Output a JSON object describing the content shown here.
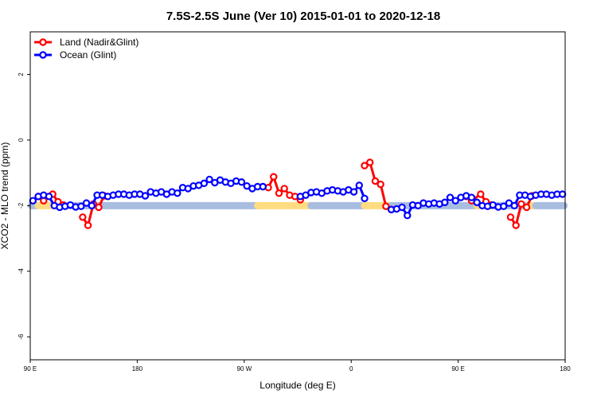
{
  "chart_data": {
    "type": "line",
    "title": "7.5S-2.5S June (Ver 10)   2015-01-01 to 2020-12-18",
    "xlabel": "Longitude (deg E)",
    "ylabel": "XCO2 - MLO trend (ppm)",
    "xlim": [
      0,
      100
    ],
    "ylim": [
      -6.7,
      3.3
    ],
    "x_ticks": [
      {
        "x": 0,
        "label": "90 E"
      },
      {
        "x": 20,
        "label": "180"
      },
      {
        "x": 40,
        "label": "90 W"
      },
      {
        "x": 60,
        "label": "0"
      },
      {
        "x": 80,
        "label": "90 E"
      },
      {
        "x": 100,
        "label": "180"
      }
    ],
    "y_ticks": [
      {
        "y": 2,
        "label": "2"
      },
      {
        "y": 0,
        "label": "0"
      },
      {
        "y": -2,
        "label": "-2"
      },
      {
        "y": -4,
        "label": "-4"
      },
      {
        "y": -6,
        "label": "-6"
      }
    ],
    "legend": {
      "position": "top-left"
    },
    "series": [
      {
        "name": "Land (Nadir&Glint)",
        "color": "#ff0000",
        "segments": [
          [
            [
              1.5,
              -1.72
            ],
            [
              2.5,
              -1.85
            ],
            [
              4.2,
              -1.65
            ],
            [
              5.2,
              -1.88
            ],
            [
              6.2,
              -1.98
            ]
          ],
          [
            [
              9.8,
              -2.35
            ],
            [
              10.8,
              -2.6
            ],
            [
              11.8,
              -1.95
            ],
            [
              12.8,
              -2.05
            ],
            [
              13.8,
              -1.7
            ]
          ],
          [
            [
              43.5,
              -1.42
            ],
            [
              44.5,
              -1.45
            ],
            [
              45.5,
              -1.12
            ],
            [
              46.5,
              -1.62
            ],
            [
              47.5,
              -1.48
            ],
            [
              48.5,
              -1.68
            ],
            [
              49.5,
              -1.72
            ],
            [
              50.5,
              -1.82
            ]
          ],
          [
            [
              62.5,
              -0.78
            ],
            [
              63.5,
              -0.68
            ],
            [
              64.5,
              -1.25
            ],
            [
              65.5,
              -1.35
            ],
            [
              66.5,
              -2.02
            ],
            [
              67.5,
              -2.12
            ]
          ],
          [
            [
              81.5,
              -1.72
            ],
            [
              82.5,
              -1.85
            ],
            [
              84.2,
              -1.65
            ],
            [
              85.2,
              -1.88
            ],
            [
              86.2,
              -1.98
            ]
          ],
          [
            [
              89.8,
              -2.35
            ],
            [
              90.8,
              -2.6
            ],
            [
              91.8,
              -1.95
            ],
            [
              92.8,
              -2.05
            ],
            [
              93.8,
              -1.7
            ]
          ]
        ]
      },
      {
        "name": "Ocean (Glint)",
        "color": "#0000ff",
        "segments": [
          [
            [
              0.5,
              -1.85
            ],
            [
              1.5,
              -1.72
            ],
            [
              2.5,
              -1.68
            ],
            [
              3.5,
              -1.72
            ],
            [
              4.5,
              -2.0
            ],
            [
              5.5,
              -2.05
            ],
            [
              6.5,
              -2.02
            ],
            [
              7.5,
              -1.98
            ],
            [
              8.5,
              -2.04
            ],
            [
              9.5,
              -2.02
            ],
            [
              10.5,
              -1.92
            ],
            [
              11.5,
              -2.0
            ],
            [
              12.5,
              -1.68
            ],
            [
              13.5,
              -1.68
            ],
            [
              14.5,
              -1.72
            ],
            [
              15.5,
              -1.68
            ],
            [
              16.5,
              -1.65
            ],
            [
              17.5,
              -1.65
            ],
            [
              18.5,
              -1.68
            ],
            [
              19.5,
              -1.65
            ],
            [
              20.5,
              -1.65
            ],
            [
              21.5,
              -1.7
            ],
            [
              22.5,
              -1.58
            ],
            [
              23.5,
              -1.62
            ],
            [
              24.5,
              -1.58
            ],
            [
              25.5,
              -1.65
            ],
            [
              26.5,
              -1.58
            ],
            [
              27.5,
              -1.62
            ],
            [
              28.5,
              -1.45
            ],
            [
              29.5,
              -1.48
            ],
            [
              30.5,
              -1.4
            ],
            [
              31.5,
              -1.38
            ],
            [
              32.5,
              -1.32
            ],
            [
              33.5,
              -1.2
            ],
            [
              34.5,
              -1.3
            ],
            [
              35.5,
              -1.22
            ],
            [
              36.5,
              -1.28
            ],
            [
              37.5,
              -1.32
            ],
            [
              38.5,
              -1.25
            ],
            [
              39.5,
              -1.28
            ],
            [
              40.5,
              -1.4
            ],
            [
              41.5,
              -1.48
            ],
            [
              42.5,
              -1.42
            ],
            [
              43.5,
              -1.42
            ]
          ],
          [
            [
              50.5,
              -1.72
            ],
            [
              51.5,
              -1.68
            ],
            [
              52.5,
              -1.6
            ],
            [
              53.5,
              -1.58
            ],
            [
              54.5,
              -1.62
            ],
            [
              55.5,
              -1.55
            ],
            [
              56.5,
              -1.52
            ],
            [
              57.5,
              -1.55
            ],
            [
              58.5,
              -1.58
            ],
            [
              59.5,
              -1.52
            ],
            [
              60.5,
              -1.58
            ],
            [
              61.5,
              -1.38
            ],
            [
              62.5,
              -1.78
            ]
          ],
          [
            [
              67.5,
              -2.12
            ],
            [
              68.5,
              -2.1
            ],
            [
              69.5,
              -2.05
            ],
            [
              70.5,
              -2.3
            ],
            [
              71.5,
              -1.98
            ],
            [
              72.5,
              -2.0
            ],
            [
              73.5,
              -1.92
            ],
            [
              74.5,
              -1.95
            ],
            [
              75.5,
              -1.92
            ],
            [
              76.5,
              -1.95
            ],
            [
              77.5,
              -1.9
            ],
            [
              78.5,
              -1.75
            ],
            [
              79.5,
              -1.85
            ],
            [
              80.5,
              -1.75
            ],
            [
              81.5,
              -1.7
            ],
            [
              82.5,
              -1.75
            ],
            [
              83.5,
              -1.9
            ],
            [
              84.5,
              -2.0
            ],
            [
              85.5,
              -2.02
            ],
            [
              86.5,
              -1.98
            ],
            [
              87.5,
              -2.04
            ],
            [
              88.5,
              -2.02
            ],
            [
              89.5,
              -1.92
            ],
            [
              90.5,
              -2.0
            ],
            [
              91.5,
              -1.68
            ],
            [
              92.5,
              -1.68
            ],
            [
              93.5,
              -1.72
            ],
            [
              94.5,
              -1.68
            ],
            [
              95.5,
              -1.65
            ],
            [
              96.5,
              -1.65
            ],
            [
              97.5,
              -1.68
            ],
            [
              98.5,
              -1.65
            ],
            [
              99.5,
              -1.65
            ]
          ]
        ]
      }
    ],
    "surface_band": {
      "y": -2,
      "colors": {
        "ocean": "#a8bde0",
        "land": "#ffdc80"
      },
      "ranges": [
        {
          "type": "ocean",
          "x": [
            0.2,
            1.5
          ]
        },
        {
          "type": "land",
          "x": [
            1.5,
            4.5
          ]
        },
        {
          "type": "ocean",
          "x": [
            4.5,
            42.5
          ]
        },
        {
          "type": "land",
          "x": [
            42.5,
            52.5
          ]
        },
        {
          "type": "ocean",
          "x": [
            52.5,
            62.5
          ]
        },
        {
          "type": "land",
          "x": [
            62.5,
            67.5
          ]
        },
        {
          "type": "ocean",
          "x": [
            67.5,
            83.5
          ]
        },
        {
          "type": "land",
          "x": [
            83.5,
            85.5
          ]
        },
        {
          "type": "ocean",
          "x": [
            85.5,
            93.5
          ]
        },
        {
          "type": "land",
          "x": [
            93.5,
            94.5
          ]
        },
        {
          "type": "ocean",
          "x": [
            94.5,
            99.8
          ]
        }
      ]
    }
  }
}
